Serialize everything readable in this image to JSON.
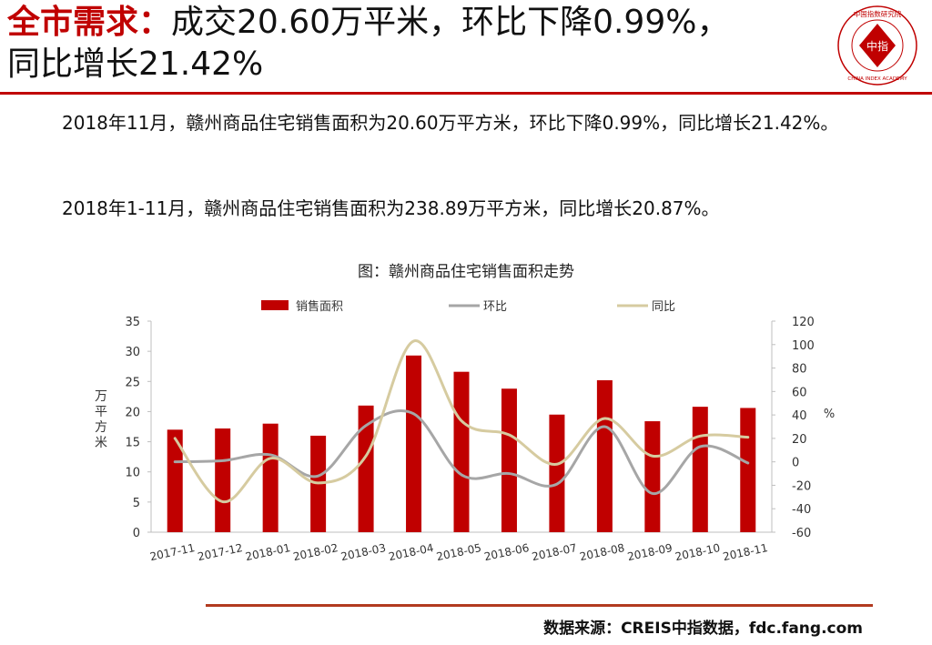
{
  "header": {
    "title_highlight": "全市需求：",
    "title_line1": "成交20.60万平米，环比下降0.99%，",
    "title_line2": "同比增长21.42%"
  },
  "logo": {
    "text": "中指",
    "ring_top": "中国指数研究院",
    "ring_bottom": "CHINA INDEX ACADEMY",
    "color": "#c00000"
  },
  "body": {
    "paragraph1": "2018年11月，赣州商品住宅销售面积为20.60万平方米，环比下降0.99%，同比增长21.42%。",
    "paragraph2": "2018年1-11月，赣州商品住宅销售面积为238.89万平方米，同比增长20.87%。"
  },
  "chart_title": "图：赣州商品住宅销售面积走势",
  "chart_data": {
    "type": "bar",
    "categories": [
      "2017-11",
      "2017-12",
      "2018-01",
      "2018-02",
      "2018-03",
      "2018-04",
      "2018-05",
      "2018-06",
      "2018-07",
      "2018-08",
      "2018-09",
      "2018-10",
      "2018-11"
    ],
    "series": [
      {
        "name": "销售面积",
        "type": "bar",
        "axis": "left",
        "color": "#c00000",
        "values": [
          17.0,
          17.2,
          18.0,
          16.0,
          21.0,
          29.3,
          26.6,
          23.8,
          19.5,
          25.2,
          18.4,
          20.8,
          20.6
        ]
      },
      {
        "name": "环比",
        "type": "line",
        "axis": "right",
        "color": "#a6a6a6",
        "values": [
          0,
          1,
          6,
          -12,
          31,
          41,
          -11,
          -10,
          -19,
          30,
          -27,
          13,
          -1
        ]
      },
      {
        "name": "同比",
        "type": "line",
        "axis": "right",
        "color": "#d6cba0",
        "values": [
          20,
          -34,
          3,
          -18,
          5,
          103,
          35,
          23,
          -2,
          37,
          5,
          22,
          21
        ]
      }
    ],
    "ylabel": "万平方米",
    "y2label": "%",
    "ylim": [
      0,
      35
    ],
    "yticks": [
      0,
      5,
      10,
      15,
      20,
      25,
      30,
      35
    ],
    "y2lim": [
      -60,
      120
    ],
    "y2ticks": [
      -60,
      -40,
      -20,
      0,
      20,
      40,
      60,
      80,
      100,
      120
    ],
    "legend": "top",
    "grid": false
  },
  "source": "数据来源：CREIS中指数据，fdc.fang.com"
}
